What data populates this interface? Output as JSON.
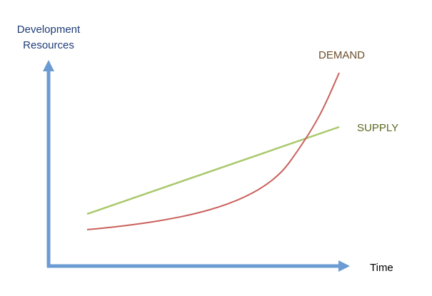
{
  "y_axis": {
    "label_lines": [
      "Development",
      "Resources"
    ]
  },
  "x_axis": {
    "label": "Time"
  },
  "curves": [
    {
      "label": "DEMAND"
    },
    {
      "label": "SUPPLY"
    }
  ]
}
